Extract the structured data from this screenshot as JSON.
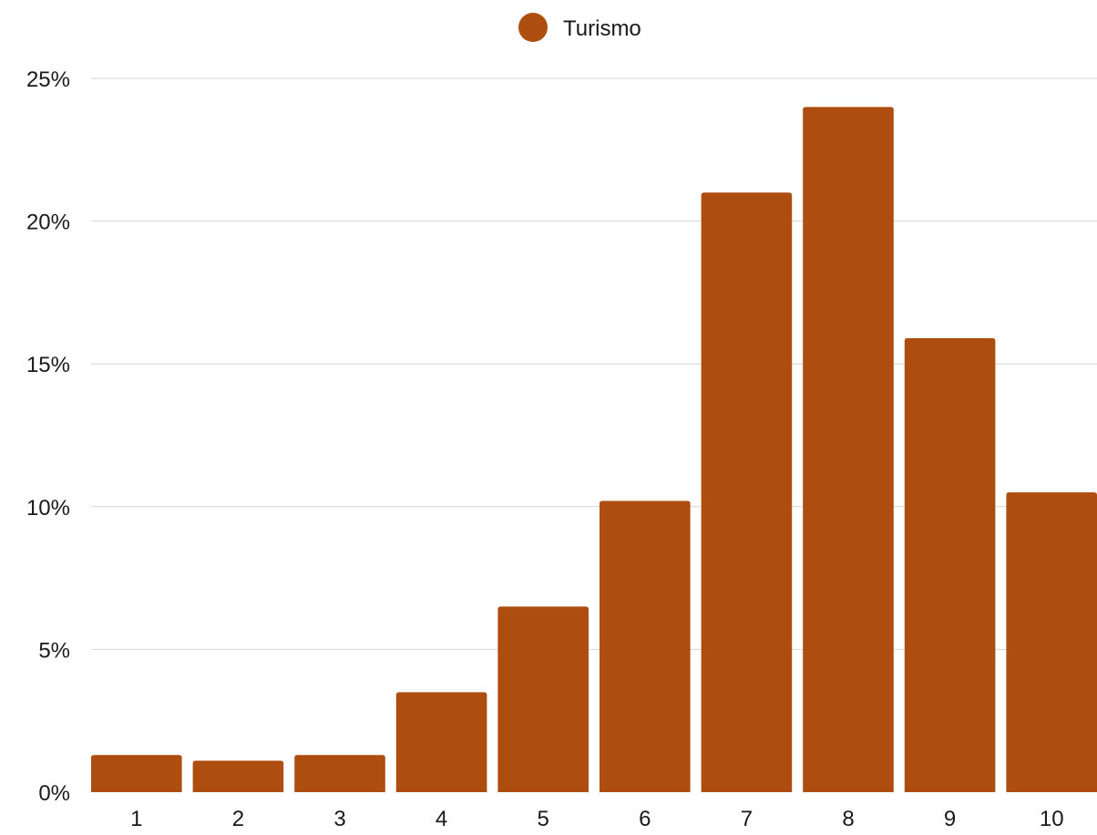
{
  "chart_data": {
    "type": "bar",
    "categories": [
      "1",
      "2",
      "3",
      "4",
      "5",
      "6",
      "7",
      "8",
      "9",
      "10"
    ],
    "series": [
      {
        "name": "Turismo",
        "color": "#ae4d10",
        "values": [
          1.3,
          1.1,
          1.3,
          3.5,
          6.5,
          10.2,
          21.0,
          24.0,
          15.9,
          10.5
        ]
      }
    ],
    "y_ticks": [
      "0%",
      "5%",
      "10%",
      "15%",
      "20%",
      "25%"
    ],
    "ylim": [
      0,
      25
    ],
    "y_unit": "%",
    "grid": true,
    "legend_position": "top-center",
    "title": "",
    "xlabel": "",
    "ylabel": ""
  }
}
